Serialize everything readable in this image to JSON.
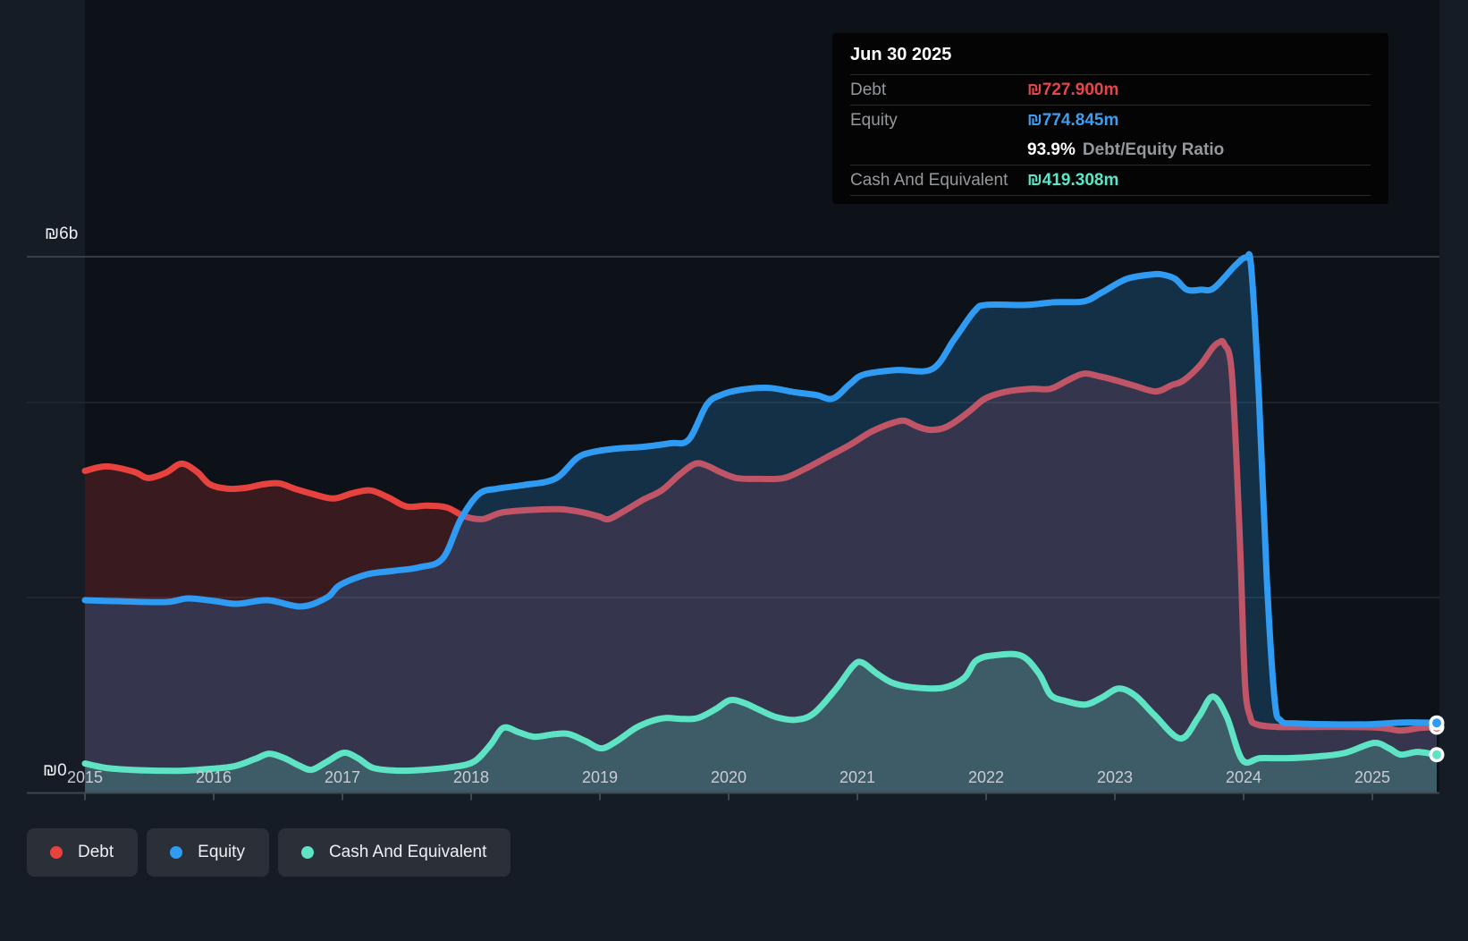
{
  "page": {
    "bg": "#161c26",
    "plot_bg": "#0d1218"
  },
  "tooltip": {
    "date": "Jun 30 2025",
    "rows": [
      {
        "label": "Debt",
        "value": "₪727.900m",
        "color": "#e4464b"
      },
      {
        "label": "Equity",
        "value": "₪774.845m",
        "color": "#3c9df3"
      },
      {
        "label": "Cash And Equivalent",
        "value": "₪419.308m",
        "color": "#5ce5c7"
      }
    ],
    "ratio_value": "93.9%",
    "ratio_label": "Debt/Equity Ratio"
  },
  "axis": {
    "y_top": "₪6b",
    "y_zero": "₪0",
    "years": [
      "2015",
      "2016",
      "2017",
      "2018",
      "2019",
      "2020",
      "2021",
      "2022",
      "2023",
      "2024",
      "2025"
    ]
  },
  "legend": [
    {
      "label": "Debt",
      "color": "#e8423f"
    },
    {
      "label": "Equity",
      "color": "#2f9bf2"
    },
    {
      "label": "Cash And Equivalent",
      "color": "#5ee4c5"
    }
  ],
  "chart_data": {
    "type": "area",
    "x_range": [
      2015,
      2025.5
    ],
    "y_range_billions": [
      0,
      6
    ],
    "y_tick_labels": [
      "₪0",
      "₪6b"
    ],
    "grid": true,
    "legend_position": "bottom-left",
    "marker_date": "Jun 30 2025",
    "currency": "₪",
    "series": [
      {
        "name": "Debt",
        "color": "#e8423f",
        "fill": "rgba(229,62,62,0.20)",
        "unit": "billions",
        "points": [
          [
            2015.0,
            3.6
          ],
          [
            2015.17,
            3.65
          ],
          [
            2015.38,
            3.59
          ],
          [
            2015.49,
            3.52
          ],
          [
            2015.63,
            3.58
          ],
          [
            2015.75,
            3.68
          ],
          [
            2015.87,
            3.59
          ],
          [
            2015.97,
            3.45
          ],
          [
            2016.11,
            3.4
          ],
          [
            2016.25,
            3.41
          ],
          [
            2016.39,
            3.45
          ],
          [
            2016.51,
            3.46
          ],
          [
            2016.63,
            3.4
          ],
          [
            2016.77,
            3.34
          ],
          [
            2016.93,
            3.29
          ],
          [
            2017.08,
            3.35
          ],
          [
            2017.22,
            3.38
          ],
          [
            2017.36,
            3.3
          ],
          [
            2017.5,
            3.2
          ],
          [
            2017.66,
            3.21
          ],
          [
            2017.81,
            3.19
          ],
          [
            2017.95,
            3.09
          ],
          [
            2018.09,
            3.06
          ],
          [
            2018.23,
            3.13
          ],
          [
            2018.44,
            3.16
          ],
          [
            2018.69,
            3.17
          ],
          [
            2018.85,
            3.14
          ],
          [
            2018.99,
            3.09
          ],
          [
            2019.07,
            3.06
          ],
          [
            2019.2,
            3.16
          ],
          [
            2019.34,
            3.28
          ],
          [
            2019.48,
            3.38
          ],
          [
            2019.62,
            3.56
          ],
          [
            2019.74,
            3.68
          ],
          [
            2019.83,
            3.66
          ],
          [
            2019.93,
            3.59
          ],
          [
            2020.06,
            3.52
          ],
          [
            2020.24,
            3.51
          ],
          [
            2020.43,
            3.52
          ],
          [
            2020.59,
            3.62
          ],
          [
            2020.76,
            3.75
          ],
          [
            2020.94,
            3.89
          ],
          [
            2021.11,
            4.04
          ],
          [
            2021.28,
            4.14
          ],
          [
            2021.37,
            4.16
          ],
          [
            2021.46,
            4.1
          ],
          [
            2021.56,
            4.06
          ],
          [
            2021.67,
            4.08
          ],
          [
            2021.77,
            4.16
          ],
          [
            2021.88,
            4.28
          ],
          [
            2021.98,
            4.4
          ],
          [
            2022.08,
            4.46
          ],
          [
            2022.21,
            4.5
          ],
          [
            2022.36,
            4.52
          ],
          [
            2022.5,
            4.52
          ],
          [
            2022.64,
            4.62
          ],
          [
            2022.76,
            4.69
          ],
          [
            2022.88,
            4.66
          ],
          [
            2023.02,
            4.61
          ],
          [
            2023.16,
            4.55
          ],
          [
            2023.32,
            4.49
          ],
          [
            2023.44,
            4.56
          ],
          [
            2023.53,
            4.61
          ],
          [
            2023.66,
            4.78
          ],
          [
            2023.76,
            4.98
          ],
          [
            2023.81,
            5.04
          ],
          [
            2023.85,
            5.02
          ],
          [
            2023.91,
            4.67
          ],
          [
            2023.97,
            2.86
          ],
          [
            2024.01,
            1.25
          ],
          [
            2024.05,
            0.85
          ],
          [
            2024.1,
            0.76
          ],
          [
            2024.27,
            0.73
          ],
          [
            2024.55,
            0.73
          ],
          [
            2024.83,
            0.73
          ],
          [
            2025.07,
            0.72
          ],
          [
            2025.22,
            0.69
          ],
          [
            2025.38,
            0.72
          ],
          [
            2025.5,
            0.728
          ]
        ]
      },
      {
        "name": "Equity",
        "color": "#2f9bf2",
        "fill": "rgba(47,155,242,0.22)",
        "unit": "billions",
        "points": [
          [
            2015.0,
            2.15
          ],
          [
            2015.24,
            2.14
          ],
          [
            2015.63,
            2.13
          ],
          [
            2015.8,
            2.17
          ],
          [
            2016.01,
            2.14
          ],
          [
            2016.18,
            2.11
          ],
          [
            2016.42,
            2.15
          ],
          [
            2016.68,
            2.08
          ],
          [
            2016.88,
            2.18
          ],
          [
            2016.98,
            2.32
          ],
          [
            2017.19,
            2.44
          ],
          [
            2017.4,
            2.48
          ],
          [
            2017.6,
            2.52
          ],
          [
            2017.78,
            2.62
          ],
          [
            2017.92,
            3.06
          ],
          [
            2018.06,
            3.34
          ],
          [
            2018.2,
            3.4
          ],
          [
            2018.4,
            3.44
          ],
          [
            2018.65,
            3.51
          ],
          [
            2018.82,
            3.74
          ],
          [
            2018.94,
            3.81
          ],
          [
            2019.13,
            3.85
          ],
          [
            2019.34,
            3.87
          ],
          [
            2019.55,
            3.91
          ],
          [
            2019.69,
            3.95
          ],
          [
            2019.83,
            4.34
          ],
          [
            2019.94,
            4.45
          ],
          [
            2020.1,
            4.51
          ],
          [
            2020.31,
            4.53
          ],
          [
            2020.52,
            4.48
          ],
          [
            2020.68,
            4.45
          ],
          [
            2020.81,
            4.41
          ],
          [
            2020.94,
            4.57
          ],
          [
            2021.05,
            4.68
          ],
          [
            2021.3,
            4.73
          ],
          [
            2021.58,
            4.74
          ],
          [
            2021.75,
            5.07
          ],
          [
            2021.91,
            5.39
          ],
          [
            2022.0,
            5.46
          ],
          [
            2022.31,
            5.46
          ],
          [
            2022.53,
            5.49
          ],
          [
            2022.76,
            5.5
          ],
          [
            2022.9,
            5.6
          ],
          [
            2023.09,
            5.75
          ],
          [
            2023.28,
            5.8
          ],
          [
            2023.37,
            5.8
          ],
          [
            2023.47,
            5.75
          ],
          [
            2023.56,
            5.63
          ],
          [
            2023.67,
            5.63
          ],
          [
            2023.77,
            5.65
          ],
          [
            2023.94,
            5.91
          ],
          [
            2024.02,
            5.99
          ],
          [
            2024.06,
            5.87
          ],
          [
            2024.12,
            4.4
          ],
          [
            2024.18,
            2.4
          ],
          [
            2024.24,
            1.05
          ],
          [
            2024.29,
            0.8
          ],
          [
            2024.41,
            0.77
          ],
          [
            2024.69,
            0.76
          ],
          [
            2024.97,
            0.76
          ],
          [
            2025.24,
            0.78
          ],
          [
            2025.5,
            0.775
          ]
        ]
      },
      {
        "name": "Cash And Equivalent",
        "color": "#5ee4c5",
        "fill": "rgba(94,228,197,0.22)",
        "unit": "billions",
        "points": [
          [
            2015.0,
            0.32
          ],
          [
            2015.17,
            0.27
          ],
          [
            2015.35,
            0.25
          ],
          [
            2015.56,
            0.24
          ],
          [
            2015.76,
            0.24
          ],
          [
            2015.97,
            0.26
          ],
          [
            2016.16,
            0.29
          ],
          [
            2016.32,
            0.37
          ],
          [
            2016.43,
            0.43
          ],
          [
            2016.55,
            0.38
          ],
          [
            2016.66,
            0.3
          ],
          [
            2016.76,
            0.25
          ],
          [
            2016.88,
            0.34
          ],
          [
            2017.01,
            0.44
          ],
          [
            2017.12,
            0.38
          ],
          [
            2017.24,
            0.27
          ],
          [
            2017.43,
            0.24
          ],
          [
            2017.64,
            0.25
          ],
          [
            2017.85,
            0.28
          ],
          [
            2018.02,
            0.34
          ],
          [
            2018.15,
            0.53
          ],
          [
            2018.25,
            0.72
          ],
          [
            2018.37,
            0.67
          ],
          [
            2018.49,
            0.62
          ],
          [
            2018.65,
            0.65
          ],
          [
            2018.76,
            0.65
          ],
          [
            2018.89,
            0.57
          ],
          [
            2019.01,
            0.49
          ],
          [
            2019.13,
            0.57
          ],
          [
            2019.28,
            0.72
          ],
          [
            2019.41,
            0.8
          ],
          [
            2019.51,
            0.83
          ],
          [
            2019.63,
            0.82
          ],
          [
            2019.76,
            0.83
          ],
          [
            2019.9,
            0.93
          ],
          [
            2020.01,
            1.03
          ],
          [
            2020.12,
            1.0
          ],
          [
            2020.24,
            0.92
          ],
          [
            2020.37,
            0.84
          ],
          [
            2020.52,
            0.81
          ],
          [
            2020.66,
            0.88
          ],
          [
            2020.83,
            1.15
          ],
          [
            2020.97,
            1.42
          ],
          [
            2021.04,
            1.45
          ],
          [
            2021.15,
            1.33
          ],
          [
            2021.28,
            1.22
          ],
          [
            2021.46,
            1.17
          ],
          [
            2021.67,
            1.17
          ],
          [
            2021.83,
            1.28
          ],
          [
            2021.92,
            1.47
          ],
          [
            2022.05,
            1.53
          ],
          [
            2022.27,
            1.53
          ],
          [
            2022.41,
            1.33
          ],
          [
            2022.5,
            1.09
          ],
          [
            2022.62,
            1.02
          ],
          [
            2022.77,
            0.98
          ],
          [
            2022.9,
            1.06
          ],
          [
            2023.03,
            1.16
          ],
          [
            2023.16,
            1.08
          ],
          [
            2023.31,
            0.86
          ],
          [
            2023.51,
            0.6
          ],
          [
            2023.65,
            0.84
          ],
          [
            2023.76,
            1.07
          ],
          [
            2023.87,
            0.84
          ],
          [
            2023.99,
            0.36
          ],
          [
            2024.13,
            0.38
          ],
          [
            2024.34,
            0.38
          ],
          [
            2024.58,
            0.4
          ],
          [
            2024.79,
            0.44
          ],
          [
            2025.01,
            0.55
          ],
          [
            2025.13,
            0.49
          ],
          [
            2025.22,
            0.42
          ],
          [
            2025.35,
            0.45
          ],
          [
            2025.5,
            0.419
          ]
        ]
      }
    ],
    "end_markers": [
      {
        "series": "Debt",
        "x": 2025.5,
        "value": 0.728
      },
      {
        "series": "Equity",
        "x": 2025.5,
        "value": 0.775
      },
      {
        "series": "Cash And Equivalent",
        "x": 2025.5,
        "value": 0.419
      }
    ]
  }
}
